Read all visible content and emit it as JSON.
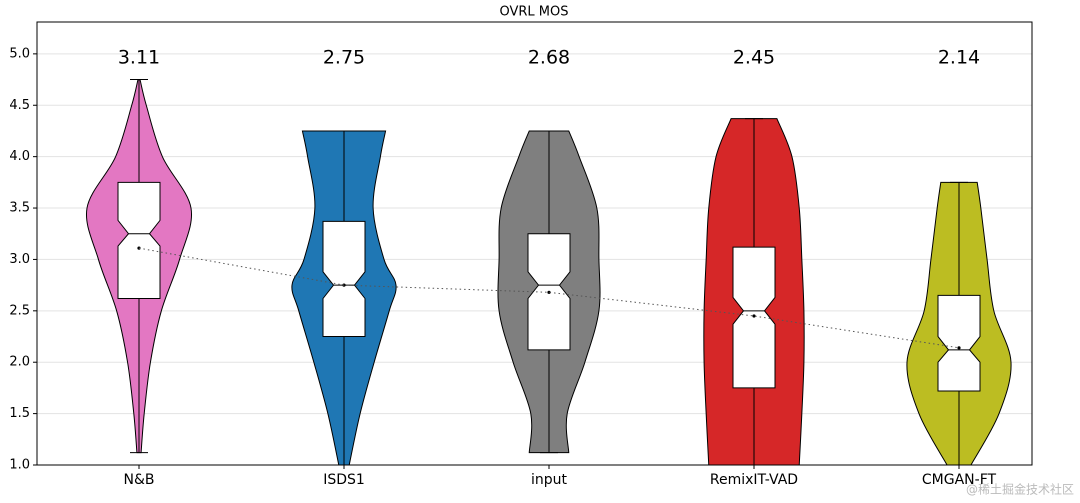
{
  "chart_data": {
    "type": "violin",
    "title": "OVRL MOS",
    "ylim": [
      1,
      5.31
    ],
    "yticks": [
      {
        "value": 1,
        "label": "1.0"
      },
      {
        "value": 1.5,
        "label": "1.5"
      },
      {
        "value": 2,
        "label": "2.0"
      },
      {
        "value": 2.5,
        "label": "2.5"
      },
      {
        "value": 3,
        "label": "3.0"
      },
      {
        "value": 3.5,
        "label": "3.5"
      },
      {
        "value": 4,
        "label": "4.0"
      },
      {
        "value": 4.5,
        "label": "4.5"
      },
      {
        "value": 5,
        "label": "5.0"
      }
    ],
    "grid": true,
    "series": [
      {
        "name": "N&B",
        "color": "#e377c2",
        "min": 1.12,
        "max": 4.75,
        "q1": 2.62,
        "median": 3.25,
        "q3": 3.75,
        "notch_low": 3.13,
        "notch_high": 3.38,
        "mean": 3.11,
        "density_y": [
          1.12,
          1.5,
          2.0,
          2.5,
          3.0,
          3.5,
          4.0,
          4.5,
          4.75
        ],
        "density": [
          0.04,
          0.1,
          0.22,
          0.43,
          0.78,
          1.0,
          0.45,
          0.14,
          0.02
        ]
      },
      {
        "name": "ISDS1",
        "color": "#1f77b4",
        "min": 1.0,
        "max": 4.25,
        "q1": 2.25,
        "median": 2.75,
        "q3": 3.37,
        "notch_low": 2.62,
        "notch_high": 2.88,
        "mean": 2.75,
        "density_y": [
          1.0,
          1.5,
          2.0,
          2.5,
          2.75,
          3.0,
          3.5,
          4.0,
          4.25
        ],
        "density": [
          0.1,
          0.31,
          0.58,
          0.87,
          1.0,
          0.77,
          0.56,
          0.7,
          0.8
        ]
      },
      {
        "name": "input",
        "color": "#7f7f7f",
        "min": 1.12,
        "max": 4.25,
        "q1": 2.12,
        "median": 2.75,
        "q3": 3.25,
        "notch_low": 2.62,
        "notch_high": 2.88,
        "mean": 2.68,
        "density_y": [
          1.12,
          1.5,
          2.0,
          2.5,
          3.0,
          3.5,
          4.0,
          4.25
        ],
        "density": [
          0.38,
          0.35,
          0.69,
          0.96,
          0.96,
          0.92,
          0.58,
          0.38
        ]
      },
      {
        "name": "RemixIT-VAD",
        "color": "#d62728",
        "min": 1.0,
        "max": 4.37,
        "q1": 1.75,
        "median": 2.5,
        "q3": 3.12,
        "notch_low": 2.37,
        "notch_high": 2.63,
        "mean": 2.45,
        "density_y": [
          1.0,
          1.5,
          2.0,
          2.5,
          3.0,
          3.5,
          4.0,
          4.37
        ],
        "density": [
          0.87,
          0.92,
          0.96,
          0.96,
          0.92,
          0.87,
          0.73,
          0.44
        ]
      },
      {
        "name": "CMGAN-FT",
        "color": "#bcbd22",
        "min": 1.0,
        "max": 3.75,
        "q1": 1.72,
        "median": 2.12,
        "q3": 2.65,
        "notch_low": 2.0,
        "notch_high": 2.25,
        "mean": 2.14,
        "density_y": [
          1.0,
          1.5,
          2.0,
          2.5,
          3.0,
          3.5,
          3.75
        ],
        "density": [
          0.23,
          0.77,
          1.0,
          0.67,
          0.54,
          0.42,
          0.35
        ]
      }
    ],
    "watermark": "@稀土掘金技术社区"
  }
}
